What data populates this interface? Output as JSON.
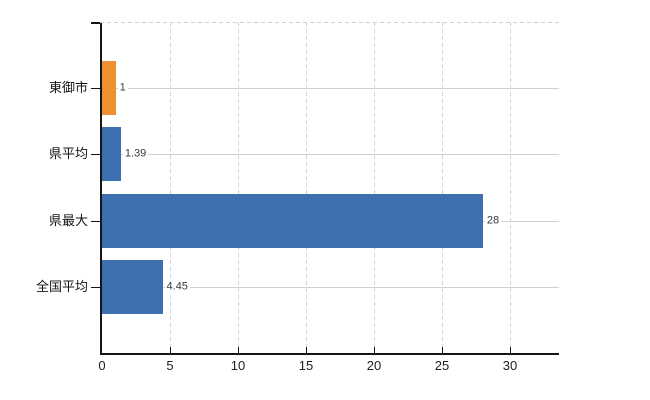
{
  "chart_data": {
    "type": "bar",
    "orientation": "horizontal",
    "title": "",
    "xlabel": "",
    "ylabel": "",
    "categories": [
      "東御市",
      "県平均",
      "県最大",
      "全国平均"
    ],
    "values": [
      1,
      1.39,
      28,
      4.45
    ],
    "value_labels": [
      "1",
      "1.39",
      "28",
      "4.45"
    ],
    "bar_colors": [
      "#EC9030",
      "#3E6FAF",
      "#3E6FAF",
      "#3E6FAF"
    ],
    "x_ticks": [
      0,
      5,
      10,
      15,
      20,
      25,
      30
    ],
    "x_tick_labels": [
      "0",
      "5",
      "10",
      "15",
      "20",
      "25",
      "30"
    ],
    "xlim": [
      0,
      33.6
    ],
    "grid": true,
    "legend": "none",
    "style": {
      "axis_color": "#151515",
      "vertical_gridline_color": "#d8d2d8",
      "vertical_gridline_style": "dashed",
      "horizontal_gridline_color": "#ccd4cc",
      "horizontal_gridline_style": "solid",
      "top_border_color": "#d5cfd5",
      "top_border_style": "dashed",
      "value_label_color": "#3a3a3a",
      "tick_label_color": "#1f1f1f",
      "category_label_color": "#141414",
      "background_color": "#ffffff"
    }
  }
}
